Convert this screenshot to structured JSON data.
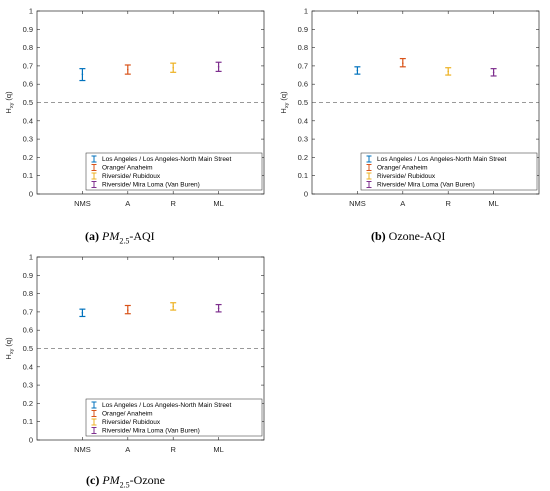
{
  "chart_data": [
    {
      "type": "errorbar",
      "caption": {
        "tag": "(a)",
        "var": "PM",
        "sub": "2.5",
        "rest": "-AQI"
      },
      "ylabel": "H",
      "ylabel_sub": "xy",
      "ylabel_tail": "(q)",
      "ylim": [
        0,
        1
      ],
      "yticks": [
        "0",
        "0.1",
        "0.2",
        "0.3",
        "0.4",
        "0.5",
        "0.6",
        "0.7",
        "0.8",
        "0.9",
        "1"
      ],
      "categories": [
        "NMS",
        "A",
        "R",
        "ML"
      ],
      "reference_line": 0.5,
      "legend_position": "bottom-right",
      "series": [
        {
          "name": "Los Angeles / Los Angeles-North Main Street",
          "color": "#0072BD",
          "x": "NMS",
          "y": 0.655,
          "low": 0.62,
          "high": 0.685
        },
        {
          "name": "Orange/ Anaheim",
          "color": "#D95319",
          "x": "A",
          "y": 0.68,
          "low": 0.655,
          "high": 0.705
        },
        {
          "name": "Riverside/ Rubidoux",
          "color": "#EDB120",
          "x": "R",
          "y": 0.69,
          "low": 0.665,
          "high": 0.715
        },
        {
          "name": "Riverside/ Mira Loma (Van Buren)",
          "color": "#7E2F8E",
          "x": "ML",
          "y": 0.695,
          "low": 0.67,
          "high": 0.72
        }
      ]
    },
    {
      "type": "errorbar",
      "caption": {
        "tag": "(b)",
        "var": "",
        "sub": "",
        "rest": "Ozone-AQI"
      },
      "ylabel": "H",
      "ylabel_sub": "xy",
      "ylabel_tail": "(q)",
      "ylim": [
        0,
        1
      ],
      "yticks": [
        "0",
        "0.1",
        "0.2",
        "0.3",
        "0.4",
        "0.5",
        "0.6",
        "0.7",
        "0.8",
        "0.9",
        "1"
      ],
      "categories": [
        "NMS",
        "A",
        "R",
        "ML"
      ],
      "reference_line": 0.5,
      "legend_position": "bottom-right",
      "series": [
        {
          "name": "Los Angeles / Los Angeles-North Main Street",
          "color": "#0072BD",
          "x": "NMS",
          "y": 0.675,
          "low": 0.655,
          "high": 0.695
        },
        {
          "name": "Orange/ Anaheim",
          "color": "#D95319",
          "x": "A",
          "y": 0.715,
          "low": 0.695,
          "high": 0.74
        },
        {
          "name": "Riverside/ Rubidoux",
          "color": "#EDB120",
          "x": "R",
          "y": 0.67,
          "low": 0.65,
          "high": 0.69
        },
        {
          "name": "Riverside/ Mira Loma (Van Buren)",
          "color": "#7E2F8E",
          "x": "ML",
          "y": 0.665,
          "low": 0.645,
          "high": 0.685
        }
      ]
    },
    {
      "type": "errorbar",
      "caption": {
        "tag": "(c)",
        "var": "PM",
        "sub": "2.5",
        "rest": "-Ozone"
      },
      "ylabel": "H",
      "ylabel_sub": "xy",
      "ylabel_tail": "(q)",
      "ylim": [
        0,
        1
      ],
      "yticks": [
        "0",
        "0.1",
        "0.2",
        "0.3",
        "0.4",
        "0.5",
        "0.6",
        "0.7",
        "0.8",
        "0.9",
        "1"
      ],
      "categories": [
        "NMS",
        "A",
        "R",
        "ML"
      ],
      "reference_line": 0.5,
      "legend_position": "bottom-right",
      "series": [
        {
          "name": "Los Angeles / Los Angeles-North Main Street",
          "color": "#0072BD",
          "x": "NMS",
          "y": 0.695,
          "low": 0.675,
          "high": 0.715
        },
        {
          "name": "Orange/ Anaheim",
          "color": "#D95319",
          "x": "A",
          "y": 0.71,
          "low": 0.69,
          "high": 0.735
        },
        {
          "name": "Riverside/ Rubidoux",
          "color": "#EDB120",
          "x": "R",
          "y": 0.73,
          "low": 0.71,
          "high": 0.75
        },
        {
          "name": "Riverside/ Mira Loma (Van Buren)",
          "color": "#7E2F8E",
          "x": "ML",
          "y": 0.72,
          "low": 0.7,
          "high": 0.74
        }
      ]
    }
  ]
}
